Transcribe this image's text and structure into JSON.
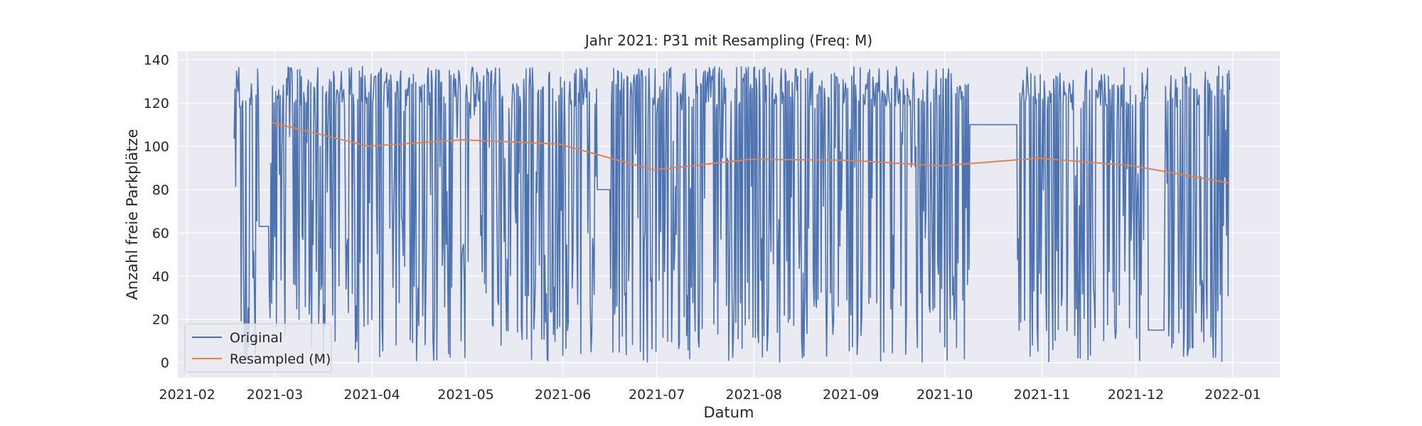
{
  "chart_data": {
    "type": "line",
    "title": "Jahr 2021: P31 mit Resampling (Freq: M)",
    "xlabel": "Datum",
    "ylabel": "Anzahl freie Parkplätze",
    "x_type": "date",
    "xlim": [
      "2021-01-29",
      "2022-01-16"
    ],
    "ylim": [
      -7,
      144
    ],
    "x_ticks": [
      "2021-02-01",
      "2021-03-01",
      "2021-04-01",
      "2021-05-01",
      "2021-06-01",
      "2021-07-01",
      "2021-08-01",
      "2021-09-01",
      "2021-10-01",
      "2021-11-01",
      "2021-12-01",
      "2022-01-01"
    ],
    "x_tick_labels": [
      "2021-02",
      "2021-03",
      "2021-04",
      "2021-05",
      "2021-06",
      "2021-07",
      "2021-08",
      "2021-09",
      "2021-10",
      "2021-11",
      "2021-12",
      "2022-01"
    ],
    "y_ticks": [
      0,
      20,
      40,
      60,
      80,
      100,
      120,
      140
    ],
    "grid": true,
    "background": "#eaeaf2",
    "legend_position": "lower-left",
    "series": [
      {
        "name": "Original",
        "color": "#4c72b0",
        "start": "2021-02-16",
        "end": "2021-12-31",
        "value_range": [
          0,
          137
        ],
        "note_segments": [
          {
            "from": "2021-02-24",
            "to": "2021-02-27",
            "value": 63
          },
          {
            "from": "2021-06-12",
            "to": "2021-06-16",
            "value": 80
          },
          {
            "from": "2021-10-09",
            "to": "2021-10-24",
            "value": 110
          },
          {
            "from": "2021-12-05",
            "to": "2021-12-10",
            "value": 15
          }
        ]
      },
      {
        "name": "Resampled (M)",
        "color": "#dd8452",
        "x": [
          "2021-02-28",
          "2021-03-31",
          "2021-04-30",
          "2021-05-31",
          "2021-06-30",
          "2021-07-31",
          "2021-08-31",
          "2021-09-30",
          "2021-10-31",
          "2021-11-30",
          "2021-12-31"
        ],
        "values": [
          111,
          100,
          103,
          101,
          89,
          94,
          93.5,
          91,
          94.5,
          91,
          83
        ]
      }
    ]
  }
}
